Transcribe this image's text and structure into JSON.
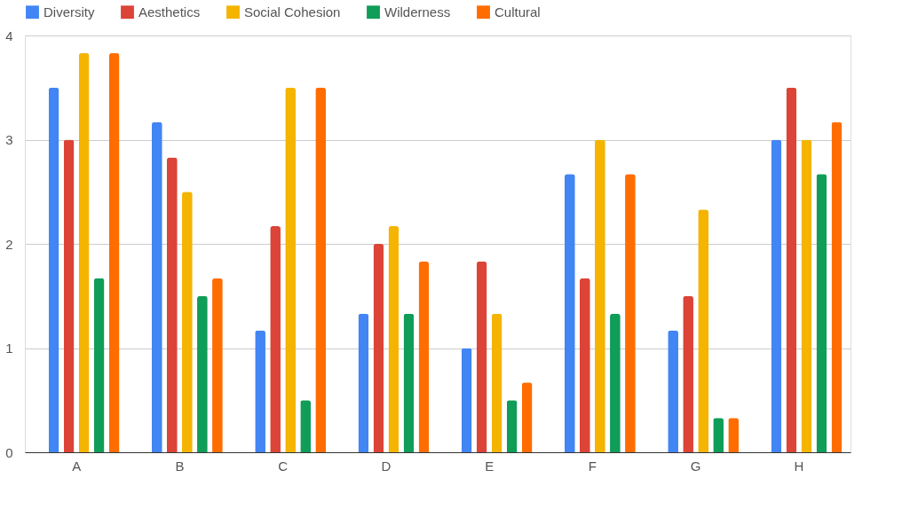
{
  "chart_data": {
    "type": "bar",
    "categories": [
      "A",
      "B",
      "C",
      "D",
      "E",
      "F",
      "G",
      "H"
    ],
    "series": [
      {
        "name": "Diversity",
        "color": "#4285f4",
        "values": [
          3.5,
          3.17,
          1.17,
          1.33,
          1,
          2.67,
          1.17,
          3
        ]
      },
      {
        "name": "Aesthetics",
        "color": "#db4437",
        "values": [
          3,
          2.83,
          2.17,
          2,
          1.83,
          1.67,
          1.5,
          3.5
        ]
      },
      {
        "name": "Social Cohesion",
        "color": "#f4b400",
        "values": [
          3.83,
          2.5,
          3.5,
          2.17,
          1.33,
          3,
          2.33,
          3
        ]
      },
      {
        "name": "Wilderness",
        "color": "#0f9d58",
        "values": [
          1.67,
          1.5,
          0.5,
          1.33,
          0.5,
          1.33,
          0.33,
          2.67
        ]
      },
      {
        "name": "Cultural",
        "color": "#ff6d01",
        "values": [
          3.83,
          1.67,
          3.5,
          1.83,
          0.67,
          2.67,
          0.33,
          3.17
        ]
      }
    ],
    "ylim": [
      0,
      4
    ],
    "yticks": [
      0,
      1,
      2,
      3,
      4
    ],
    "grid": "y",
    "legend": "top"
  }
}
